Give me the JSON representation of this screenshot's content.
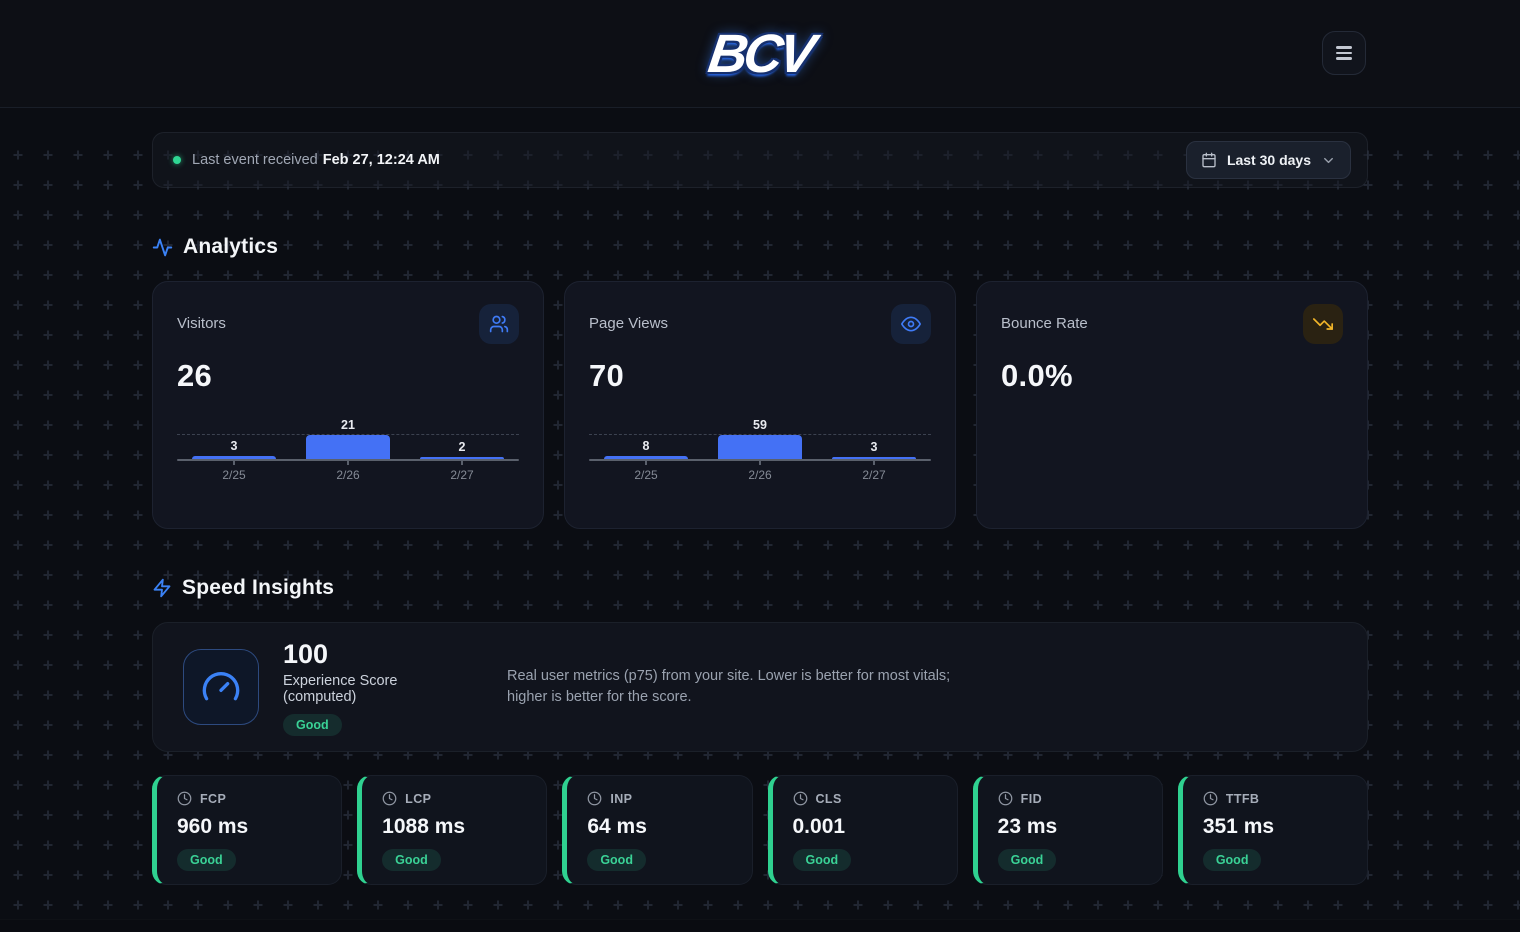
{
  "colors": {
    "accent_blue": "#3b82f6",
    "bar_blue": "#4471f5",
    "accent_green": "#2fd693",
    "accent_amber": "#f0b429"
  },
  "header": {
    "logo_text": "BCV",
    "menu_button_icon": "hamburger-menu-icon"
  },
  "status_bar": {
    "prefix": "Last event received",
    "timestamp": "Feb 27, 12:24 AM",
    "range_button": {
      "label": "Last 30 days",
      "icons": [
        "calendar-icon",
        "chevron-down-icon"
      ]
    }
  },
  "analytics": {
    "title": "Analytics",
    "section_icon": "activity-icon",
    "cards": [
      {
        "title": "Visitors",
        "value": "26",
        "icon": "users-icon",
        "chart_index": 0
      },
      {
        "title": "Page Views",
        "value": "70",
        "icon": "eye-icon",
        "chart_index": 1
      },
      {
        "title": "Bounce Rate",
        "value": "0.0%",
        "icon": "trending-down-icon",
        "chart_index": null
      }
    ]
  },
  "chart_data": [
    {
      "type": "bar",
      "title": "Visitors by day",
      "categories": [
        "2/25",
        "2/26",
        "2/27"
      ],
      "values": [
        3,
        21,
        2
      ],
      "xlabel": "",
      "ylabel": "",
      "ylim": [
        0,
        21
      ],
      "grid": "dashed line at max value",
      "legend": "none"
    },
    {
      "type": "bar",
      "title": "Page Views by day",
      "categories": [
        "2/25",
        "2/26",
        "2/27"
      ],
      "values": [
        8,
        59,
        3
      ],
      "xlabel": "",
      "ylabel": "",
      "ylim": [
        0,
        59
      ],
      "grid": "dashed line at max value",
      "legend": "none"
    }
  ],
  "speed_insights": {
    "title": "Speed Insights",
    "section_icon": "zap-icon",
    "score_card": {
      "icon": "gauge-icon",
      "score": "100",
      "label": "Experience Score (computed)",
      "badge": "Good",
      "description": "Real user metrics (p75) from your site. Lower is better for most vitals; higher is better for the score."
    },
    "metrics": [
      {
        "name": "FCP",
        "value": "960 ms",
        "status": "Good"
      },
      {
        "name": "LCP",
        "value": "1088 ms",
        "status": "Good"
      },
      {
        "name": "INP",
        "value": "64 ms",
        "status": "Good"
      },
      {
        "name": "CLS",
        "value": "0.001",
        "status": "Good"
      },
      {
        "name": "FID",
        "value": "23 ms",
        "status": "Good"
      },
      {
        "name": "TTFB",
        "value": "351 ms",
        "status": "Good"
      }
    ]
  }
}
